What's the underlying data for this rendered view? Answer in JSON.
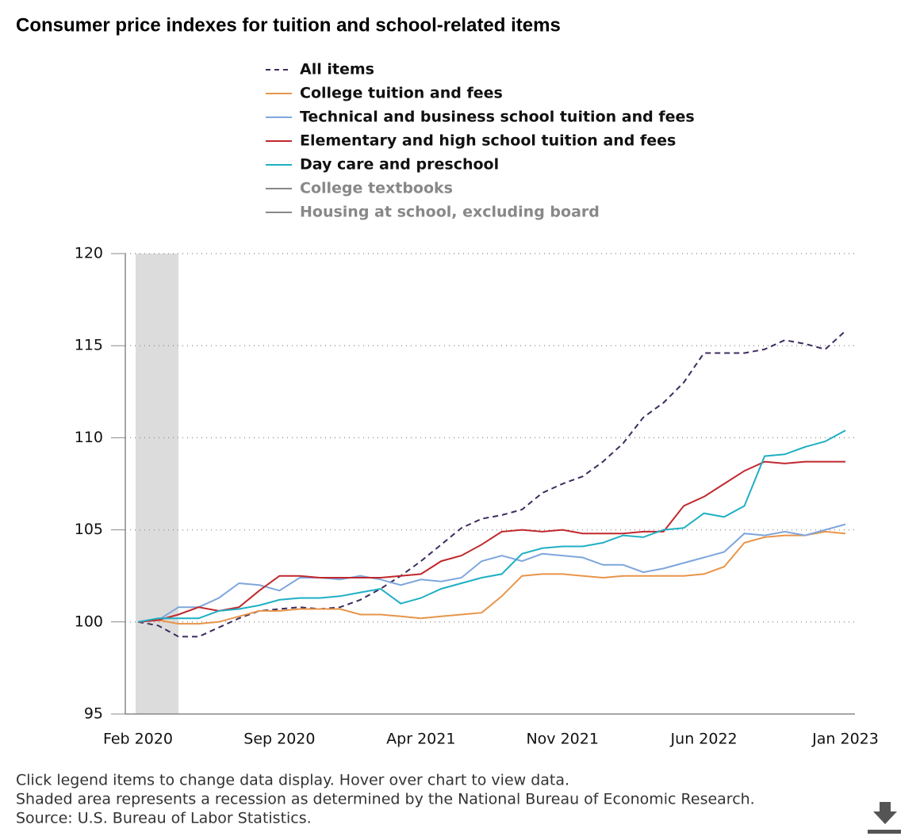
{
  "chart_data": {
    "type": "line",
    "title": "Consumer price indexes for tuition and school-related items",
    "categories": [
      "Feb 2020",
      null,
      null,
      null,
      null,
      null,
      null,
      "Sep 2020",
      null,
      null,
      null,
      null,
      null,
      null,
      "Apr 2021",
      null,
      null,
      null,
      null,
      null,
      null,
      "Nov 2021",
      null,
      null,
      null,
      null,
      null,
      null,
      "Jun 2022",
      null,
      null,
      null,
      null,
      null,
      null,
      "Jan 2023"
    ],
    "series": [
      {
        "name": "All items",
        "color": "#3d2b5e",
        "dashed": true,
        "visible": true,
        "values": [
          100.0,
          99.8,
          99.2,
          99.2,
          99.7,
          100.2,
          100.6,
          100.7,
          100.8,
          100.7,
          100.8,
          101.2,
          101.8,
          102.5,
          103.3,
          104.2,
          105.1,
          105.6,
          105.8,
          106.1,
          107.0,
          107.5,
          107.9,
          108.7,
          109.7,
          111.1,
          111.9,
          113.0,
          114.6,
          114.6,
          114.6,
          114.8,
          115.3,
          115.1,
          114.8,
          115.8
        ]
      },
      {
        "name": "College tuition and fees",
        "color": "#e8954a",
        "dashed": false,
        "visible": true,
        "values": [
          100.0,
          100.1,
          99.9,
          99.9,
          100.0,
          100.3,
          100.6,
          100.6,
          100.7,
          100.7,
          100.7,
          100.4,
          100.4,
          100.3,
          100.2,
          100.3,
          100.4,
          100.5,
          101.4,
          102.5,
          102.6,
          102.6,
          102.5,
          102.4,
          102.5,
          102.5,
          102.5,
          102.5,
          102.6,
          103.0,
          104.3,
          104.6,
          104.7,
          104.7,
          104.9,
          104.8
        ]
      },
      {
        "name": "Technical and business school tuition and fees",
        "color": "#7ea6dc",
        "dashed": false,
        "visible": true,
        "values": [
          100.0,
          100.1,
          100.8,
          100.8,
          101.3,
          102.1,
          102.0,
          101.7,
          102.4,
          102.4,
          102.3,
          102.5,
          102.3,
          102.0,
          102.3,
          102.2,
          102.4,
          103.3,
          103.6,
          103.3,
          103.7,
          103.6,
          103.5,
          103.1,
          103.1,
          102.7,
          102.9,
          103.2,
          103.5,
          103.8,
          104.8,
          104.7,
          104.9,
          104.7,
          105.0,
          105.3
        ]
      },
      {
        "name": "Elementary and high school tuition and fees",
        "color": "#c0282d",
        "dashed": false,
        "visible": true,
        "values": [
          100.0,
          100.1,
          100.4,
          100.8,
          100.6,
          100.8,
          101.7,
          102.5,
          102.5,
          102.4,
          102.4,
          102.4,
          102.4,
          102.5,
          102.6,
          103.3,
          103.6,
          104.2,
          104.9,
          105.0,
          104.9,
          105.0,
          104.8,
          104.8,
          104.8,
          104.9,
          104.9,
          106.3,
          106.8,
          107.5,
          108.2,
          108.7,
          108.6,
          108.7,
          108.7,
          108.7
        ]
      },
      {
        "name": "Day care and preschool",
        "color": "#1fb0c4",
        "dashed": false,
        "visible": true,
        "values": [
          100.0,
          100.2,
          100.2,
          100.2,
          100.6,
          100.7,
          100.9,
          101.2,
          101.3,
          101.3,
          101.4,
          101.6,
          101.8,
          101.0,
          101.3,
          101.8,
          102.1,
          102.4,
          102.6,
          103.7,
          104.0,
          104.1,
          104.1,
          104.3,
          104.7,
          104.6,
          105.0,
          105.1,
          105.9,
          105.7,
          106.3,
          109.0,
          109.1,
          109.5,
          109.8,
          110.4
        ]
      },
      {
        "name": "College textbooks",
        "color": "#888888",
        "dashed": false,
        "visible": false
      },
      {
        "name": "Housing at school, excluding board",
        "color": "#888888",
        "dashed": false,
        "visible": false
      }
    ],
    "shaded_x": [
      0,
      2
    ],
    "shade_color": "#dcdcdc",
    "ylim": [
      95,
      120
    ],
    "yticks": [
      95,
      100,
      105,
      110,
      115,
      120
    ],
    "grid": true,
    "notes": [
      "Click legend items to change data display. Hover over chart to view data.",
      "Shaded area represents a recession as determined by the National Bureau of Economic Research.",
      "Source: U.S. Bureau of Labor Statistics."
    ]
  }
}
